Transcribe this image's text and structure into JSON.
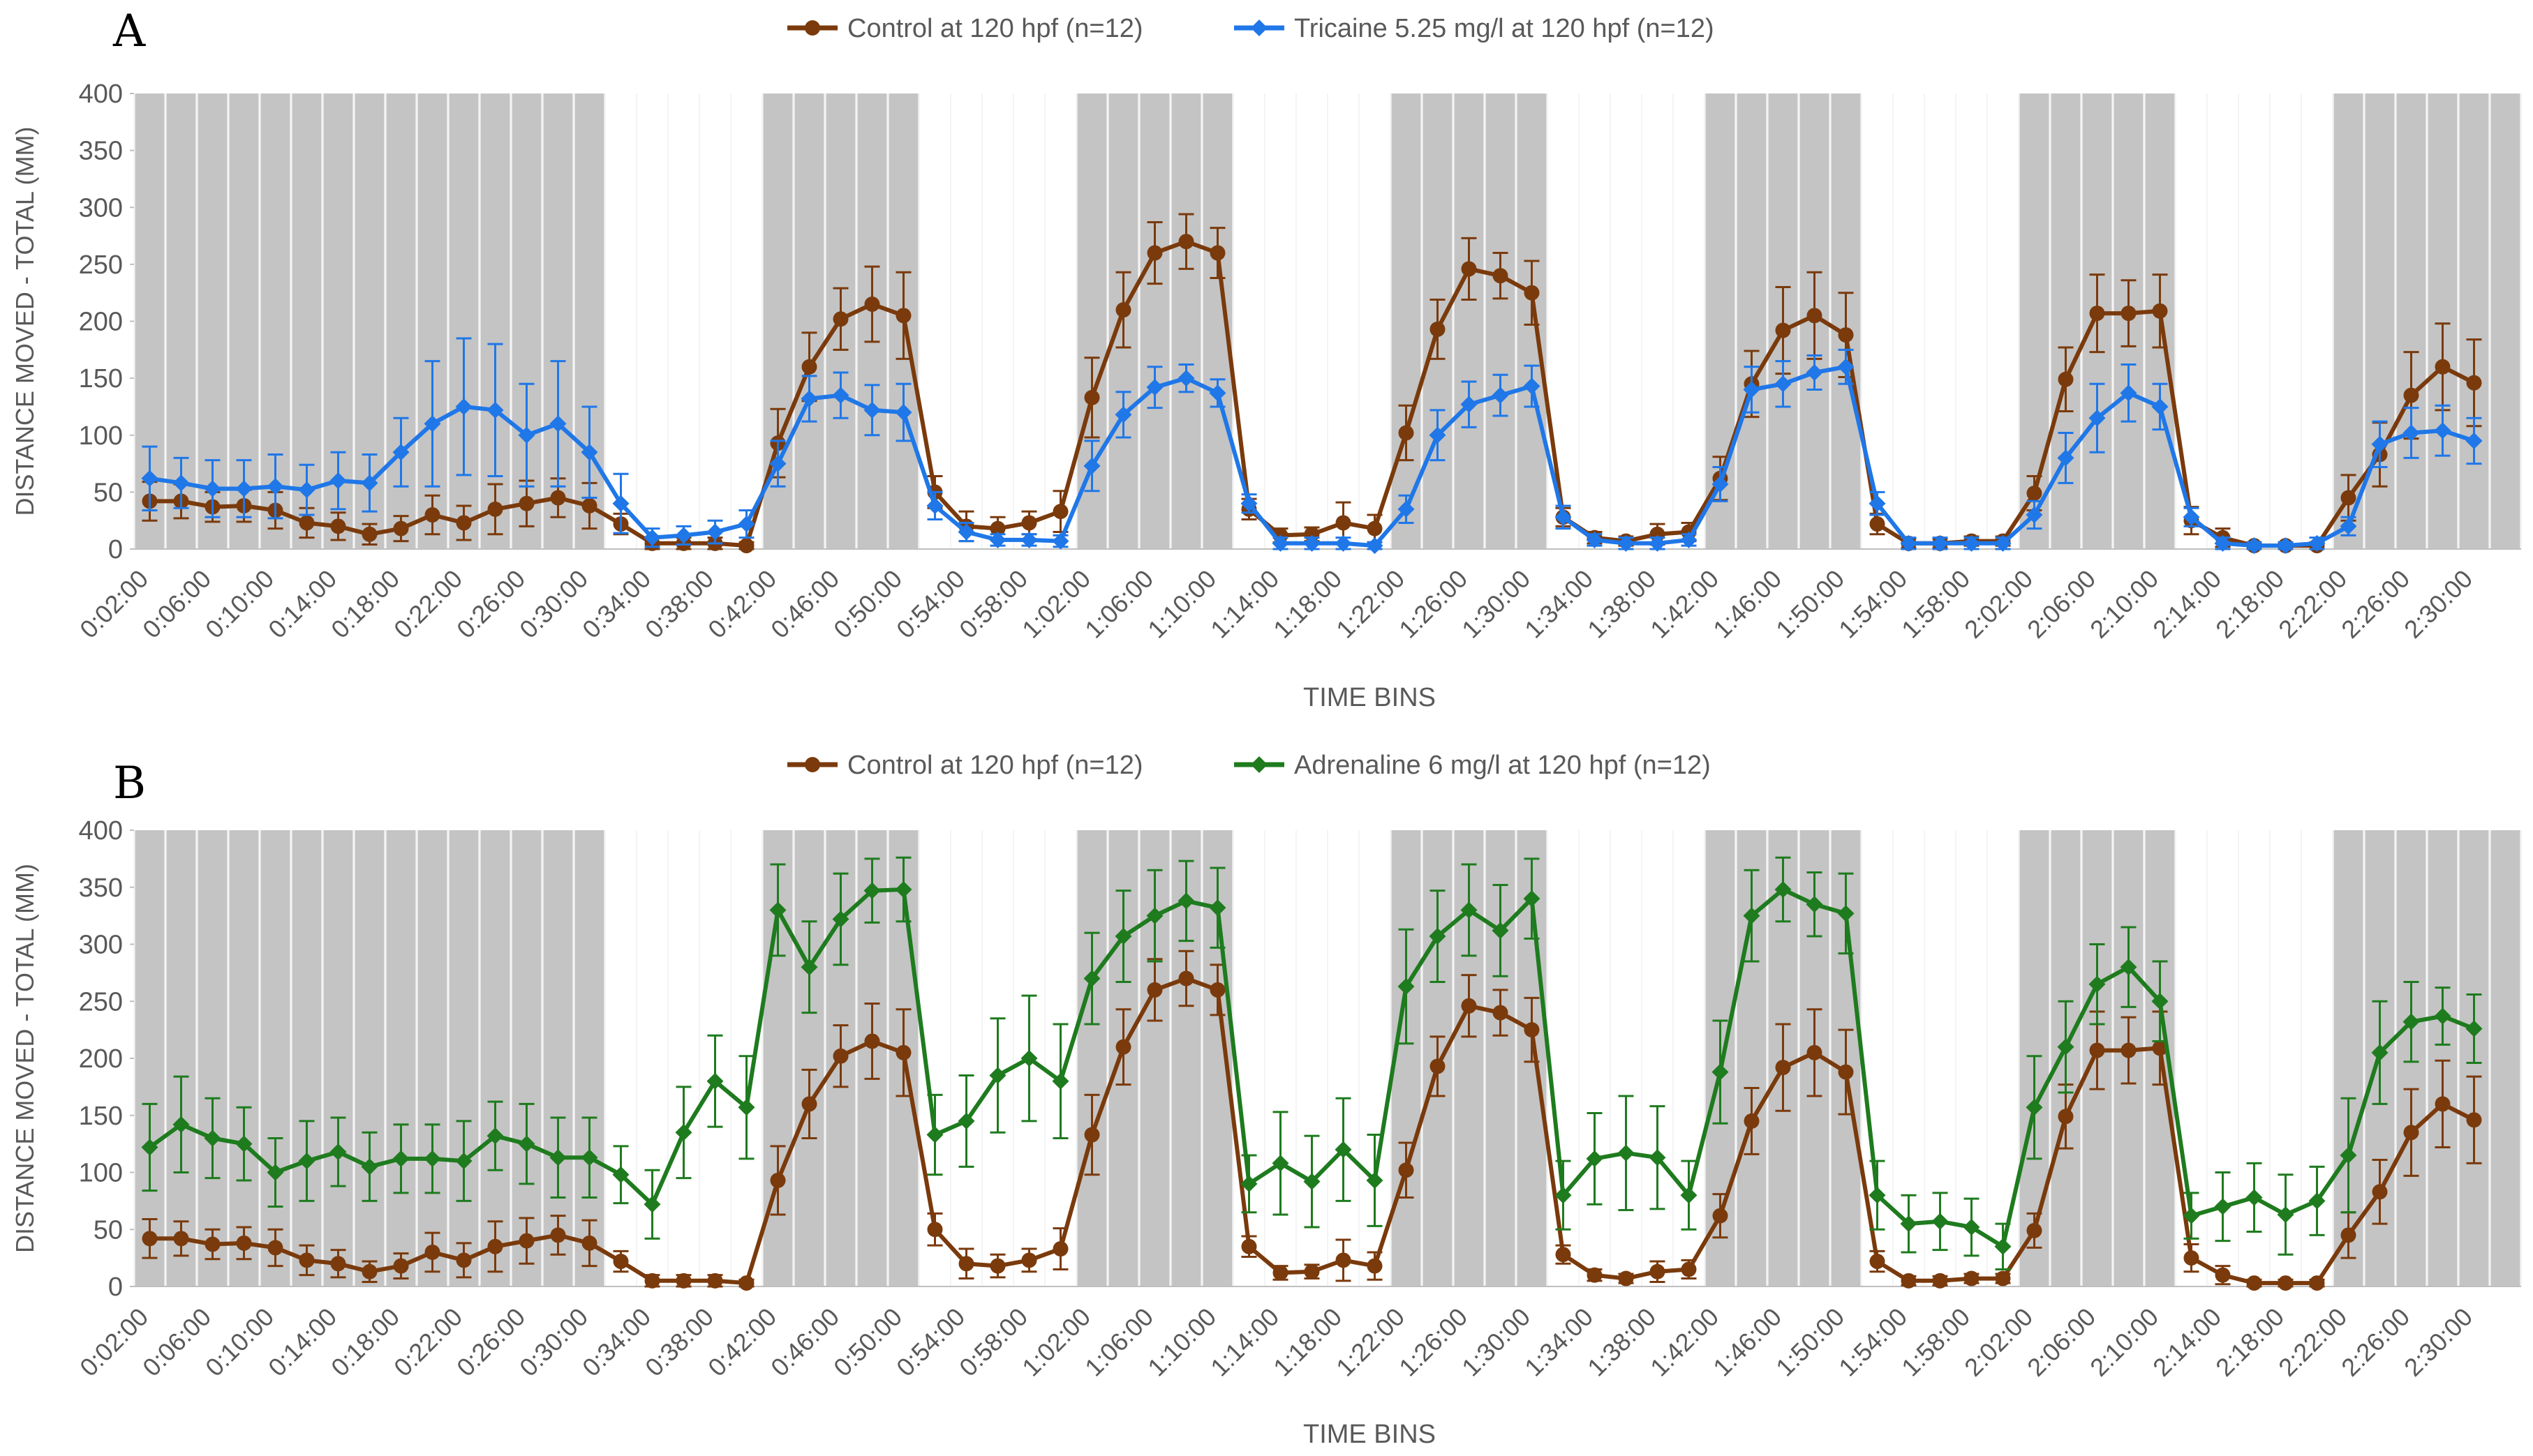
{
  "chart_data": [
    {
      "type": "line",
      "panel": "A",
      "title": "",
      "xlabel": "TIME BINS",
      "ylabel": "DISTANCE MOVED - TOTAL (MM)",
      "ylim": [
        0,
        400
      ],
      "yticks": [
        0,
        50,
        100,
        150,
        200,
        250,
        300,
        350,
        400
      ],
      "legend_position": "top",
      "categories": [
        "0:02:00",
        "0:04:00",
        "0:06:00",
        "0:08:00",
        "0:10:00",
        "0:12:00",
        "0:14:00",
        "0:16:00",
        "0:18:00",
        "0:20:00",
        "0:22:00",
        "0:24:00",
        "0:26:00",
        "0:28:00",
        "0:30:00",
        "0:32:00",
        "0:34:00",
        "0:36:00",
        "0:38:00",
        "0:40:00",
        "0:42:00",
        "0:44:00",
        "0:46:00",
        "0:48:00",
        "0:50:00",
        "0:52:00",
        "0:54:00",
        "0:56:00",
        "0:58:00",
        "1:00:00",
        "1:02:00",
        "1:04:00",
        "1:06:00",
        "1:08:00",
        "1:10:00",
        "1:12:00",
        "1:14:00",
        "1:16:00",
        "1:18:00",
        "1:20:00",
        "1:22:00",
        "1:24:00",
        "1:26:00",
        "1:28:00",
        "1:30:00",
        "1:32:00",
        "1:34:00",
        "1:36:00",
        "1:38:00",
        "1:40:00",
        "1:42:00",
        "1:44:00",
        "1:46:00",
        "1:48:00",
        "1:50:00",
        "1:52:00",
        "1:54:00",
        "1:56:00",
        "1:58:00",
        "2:00:00",
        "2:02:00",
        "2:04:00",
        "2:06:00",
        "2:08:00",
        "2:10:00",
        "2:12:00",
        "2:14:00",
        "2:16:00",
        "2:18:00",
        "2:20:00",
        "2:22:00",
        "2:24:00",
        "2:26:00",
        "2:28:00",
        "2:30:00",
        "2:32:00"
      ],
      "tick_labels": [
        "0:02:00",
        "0:06:00",
        "0:10:00",
        "0:14:00",
        "0:18:00",
        "0:22:00",
        "0:26:00",
        "0:30:00",
        "0:34:00",
        "0:38:00",
        "0:42:00",
        "0:46:00",
        "0:50:00",
        "0:54:00",
        "0:58:00",
        "1:02:00",
        "1:06:00",
        "1:10:00",
        "1:14:00",
        "1:18:00",
        "1:22:00",
        "1:26:00",
        "1:30:00",
        "1:34:00",
        "1:38:00",
        "1:42:00",
        "1:46:00",
        "1:50:00",
        "1:54:00",
        "1:58:00",
        "2:02:00",
        "2:06:00",
        "2:10:00",
        "2:14:00",
        "2:18:00",
        "2:22:00",
        "2:26:00",
        "2:30:00"
      ],
      "dark_periods": [
        [
          0,
          14
        ],
        [
          20,
          24
        ],
        [
          30,
          34
        ],
        [
          40,
          44
        ],
        [
          50,
          54
        ],
        [
          60,
          64
        ],
        [
          70,
          75
        ]
      ],
      "series": [
        {
          "name": "Control at 120 hpf (n=12)",
          "color": "#7a3a0c",
          "marker": "circle",
          "values": [
            42,
            42,
            37,
            38,
            34,
            23,
            20,
            13,
            18,
            30,
            23,
            35,
            40,
            45,
            38,
            22,
            5,
            5,
            5,
            3,
            93,
            160,
            202,
            215,
            205,
            50,
            20,
            18,
            23,
            33,
            133,
            210,
            260,
            270,
            260,
            35,
            12,
            13,
            23,
            18,
            102,
            193,
            246,
            240,
            225,
            28,
            10,
            7,
            13,
            15,
            62,
            145,
            192,
            205,
            188,
            22,
            5,
            5,
            7,
            7,
            49,
            149,
            207,
            207,
            209,
            25,
            10,
            3,
            3,
            3,
            45,
            83,
            135,
            160,
            146,
            null
          ],
          "errors": [
            17,
            15,
            13,
            14,
            16,
            13,
            12,
            9,
            11,
            17,
            15,
            22,
            20,
            17,
            20,
            9,
            5,
            5,
            5,
            3,
            30,
            30,
            27,
            33,
            38,
            14,
            13,
            10,
            10,
            18,
            35,
            33,
            27,
            24,
            22,
            9,
            6,
            6,
            18,
            12,
            24,
            26,
            27,
            20,
            28,
            8,
            5,
            4,
            9,
            8,
            19,
            29,
            38,
            38,
            37,
            9,
            4,
            4,
            4,
            4,
            15,
            28,
            34,
            29,
            32,
            12,
            8,
            3,
            3,
            3,
            20,
            28,
            38,
            38,
            38,
            null
          ]
        },
        {
          "name": "Tricaine 5.25 mg/l at 120 hpf (n=12)",
          "color": "#1f77e8",
          "marker": "diamond",
          "values": [
            62,
            58,
            53,
            53,
            55,
            52,
            60,
            58,
            85,
            110,
            125,
            122,
            100,
            110,
            85,
            40,
            10,
            12,
            15,
            22,
            75,
            132,
            135,
            122,
            120,
            38,
            15,
            8,
            8,
            7,
            73,
            118,
            142,
            150,
            137,
            40,
            5,
            5,
            5,
            3,
            35,
            100,
            127,
            135,
            143,
            28,
            8,
            5,
            5,
            8,
            57,
            140,
            145,
            155,
            160,
            40,
            5,
            5,
            5,
            5,
            30,
            80,
            115,
            137,
            125,
            28,
            5,
            3,
            3,
            5,
            20,
            92,
            102,
            104,
            95,
            null
          ],
          "errors": [
            28,
            22,
            25,
            25,
            28,
            22,
            25,
            25,
            30,
            55,
            60,
            58,
            45,
            55,
            40,
            26,
            8,
            8,
            10,
            12,
            20,
            20,
            20,
            22,
            25,
            12,
            8,
            5,
            5,
            5,
            22,
            20,
            18,
            12,
            12,
            8,
            5,
            5,
            5,
            3,
            12,
            22,
            20,
            18,
            18,
            10,
            5,
            5,
            5,
            5,
            15,
            20,
            20,
            15,
            15,
            10,
            5,
            5,
            5,
            5,
            12,
            22,
            30,
            25,
            20,
            8,
            5,
            3,
            3,
            5,
            8,
            20,
            22,
            22,
            20,
            null
          ]
        }
      ]
    },
    {
      "type": "line",
      "panel": "B",
      "title": "",
      "xlabel": "TIME BINS",
      "ylabel": "DISTANCE MOVED - TOTAL (MM)",
      "ylim": [
        0,
        400
      ],
      "yticks": [
        0,
        50,
        100,
        150,
        200,
        250,
        300,
        350,
        400
      ],
      "legend_position": "top",
      "categories": [
        "0:02:00",
        "0:04:00",
        "0:06:00",
        "0:08:00",
        "0:10:00",
        "0:12:00",
        "0:14:00",
        "0:16:00",
        "0:18:00",
        "0:20:00",
        "0:22:00",
        "0:24:00",
        "0:26:00",
        "0:28:00",
        "0:30:00",
        "0:32:00",
        "0:34:00",
        "0:36:00",
        "0:38:00",
        "0:40:00",
        "0:42:00",
        "0:44:00",
        "0:46:00",
        "0:48:00",
        "0:50:00",
        "0:52:00",
        "0:54:00",
        "0:56:00",
        "0:58:00",
        "1:00:00",
        "1:02:00",
        "1:04:00",
        "1:06:00",
        "1:08:00",
        "1:10:00",
        "1:12:00",
        "1:14:00",
        "1:16:00",
        "1:18:00",
        "1:20:00",
        "1:22:00",
        "1:24:00",
        "1:26:00",
        "1:28:00",
        "1:30:00",
        "1:32:00",
        "1:34:00",
        "1:36:00",
        "1:38:00",
        "1:40:00",
        "1:42:00",
        "1:44:00",
        "1:46:00",
        "1:48:00",
        "1:50:00",
        "1:52:00",
        "1:54:00",
        "1:56:00",
        "1:58:00",
        "2:00:00",
        "2:02:00",
        "2:04:00",
        "2:06:00",
        "2:08:00",
        "2:10:00",
        "2:12:00",
        "2:14:00",
        "2:16:00",
        "2:18:00",
        "2:20:00",
        "2:22:00",
        "2:24:00",
        "2:26:00",
        "2:28:00",
        "2:30:00",
        "2:32:00"
      ],
      "tick_labels": [
        "0:02:00",
        "0:06:00",
        "0:10:00",
        "0:14:00",
        "0:18:00",
        "0:22:00",
        "0:26:00",
        "0:30:00",
        "0:34:00",
        "0:38:00",
        "0:42:00",
        "0:46:00",
        "0:50:00",
        "0:54:00",
        "0:58:00",
        "1:02:00",
        "1:06:00",
        "1:10:00",
        "1:14:00",
        "1:18:00",
        "1:22:00",
        "1:26:00",
        "1:30:00",
        "1:34:00",
        "1:38:00",
        "1:42:00",
        "1:46:00",
        "1:50:00",
        "1:54:00",
        "1:58:00",
        "2:02:00",
        "2:06:00",
        "2:10:00",
        "2:14:00",
        "2:18:00",
        "2:22:00",
        "2:26:00",
        "2:30:00"
      ],
      "dark_periods": [
        [
          0,
          14
        ],
        [
          20,
          24
        ],
        [
          30,
          34
        ],
        [
          40,
          44
        ],
        [
          50,
          54
        ],
        [
          60,
          64
        ],
        [
          70,
          75
        ]
      ],
      "series": [
        {
          "name": "Control at 120 hpf (n=12)",
          "color": "#7a3a0c",
          "marker": "circle",
          "values": [
            42,
            42,
            37,
            38,
            34,
            23,
            20,
            13,
            18,
            30,
            23,
            35,
            40,
            45,
            38,
            22,
            5,
            5,
            5,
            3,
            93,
            160,
            202,
            215,
            205,
            50,
            20,
            18,
            23,
            33,
            133,
            210,
            260,
            270,
            260,
            35,
            12,
            13,
            23,
            18,
            102,
            193,
            246,
            240,
            225,
            28,
            10,
            7,
            13,
            15,
            62,
            145,
            192,
            205,
            188,
            22,
            5,
            5,
            7,
            7,
            49,
            149,
            207,
            207,
            209,
            25,
            10,
            3,
            3,
            3,
            45,
            83,
            135,
            160,
            146,
            null
          ],
          "errors": [
            17,
            15,
            13,
            14,
            16,
            13,
            12,
            9,
            11,
            17,
            15,
            22,
            20,
            17,
            20,
            9,
            5,
            5,
            5,
            3,
            30,
            30,
            27,
            33,
            38,
            14,
            13,
            10,
            10,
            18,
            35,
            33,
            27,
            24,
            22,
            9,
            6,
            6,
            18,
            12,
            24,
            26,
            27,
            20,
            28,
            8,
            5,
            4,
            9,
            8,
            19,
            29,
            38,
            38,
            37,
            9,
            4,
            4,
            4,
            4,
            15,
            28,
            34,
            29,
            32,
            12,
            8,
            3,
            3,
            3,
            20,
            28,
            38,
            38,
            38,
            null
          ]
        },
        {
          "name": "Adrenaline 6 mg/l at 120 hpf (n=12)",
          "color": "#1e7b1e",
          "marker": "diamond",
          "values": [
            122,
            142,
            130,
            125,
            100,
            110,
            118,
            105,
            112,
            112,
            110,
            132,
            125,
            113,
            113,
            98,
            72,
            135,
            180,
            157,
            330,
            280,
            322,
            347,
            348,
            133,
            145,
            185,
            200,
            180,
            270,
            307,
            325,
            338,
            332,
            90,
            108,
            92,
            120,
            93,
            263,
            307,
            330,
            312,
            340,
            80,
            112,
            117,
            113,
            80,
            188,
            325,
            348,
            335,
            327,
            80,
            55,
            57,
            52,
            35,
            157,
            210,
            265,
            280,
            250,
            62,
            70,
            78,
            63,
            75,
            115,
            205,
            232,
            237,
            226,
            null
          ],
          "errors": [
            38,
            42,
            35,
            32,
            30,
            35,
            30,
            30,
            30,
            30,
            35,
            30,
            35,
            35,
            35,
            25,
            30,
            40,
            40,
            45,
            40,
            40,
            40,
            28,
            28,
            35,
            40,
            50,
            55,
            50,
            40,
            40,
            40,
            35,
            35,
            25,
            45,
            40,
            45,
            40,
            50,
            40,
            40,
            40,
            35,
            30,
            40,
            50,
            45,
            30,
            45,
            40,
            28,
            28,
            35,
            30,
            25,
            25,
            25,
            20,
            45,
            40,
            35,
            35,
            35,
            20,
            30,
            30,
            35,
            30,
            50,
            45,
            35,
            25,
            30,
            null
          ]
        }
      ]
    }
  ]
}
